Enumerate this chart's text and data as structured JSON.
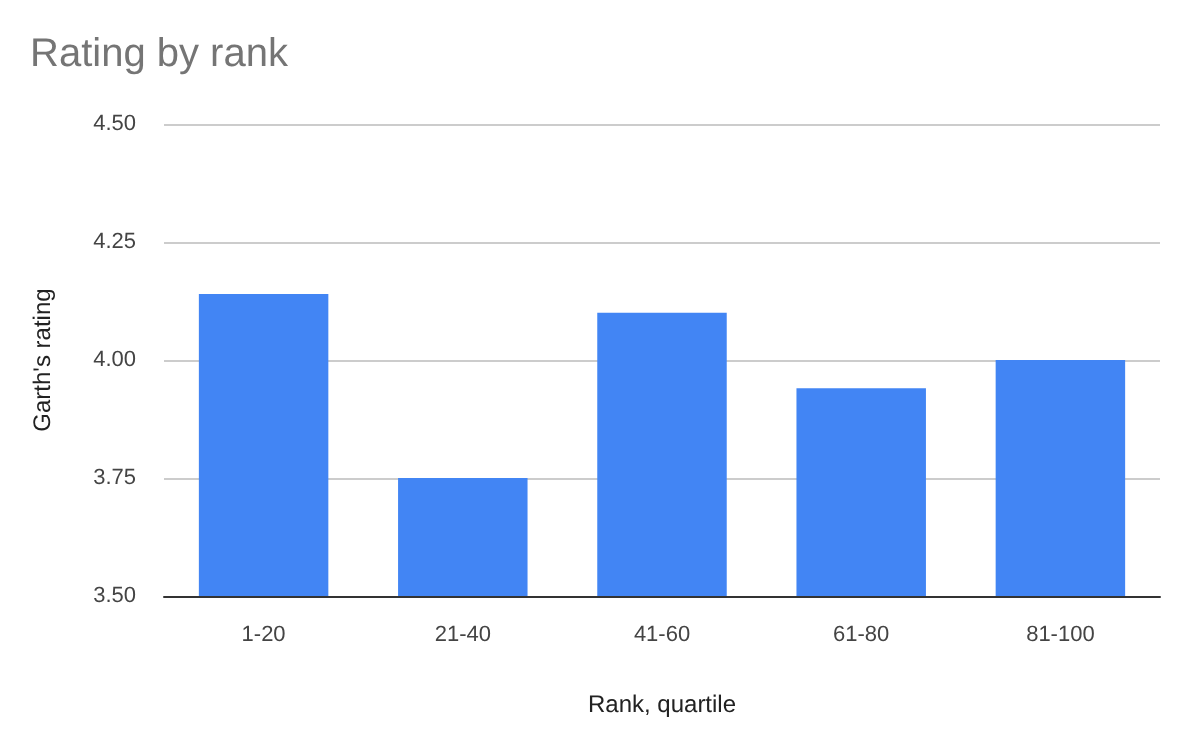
{
  "chart_data": {
    "type": "bar",
    "title": "Rating by rank",
    "xlabel": "Rank, quartile",
    "ylabel": "Garth's rating",
    "categories": [
      "1-20",
      "21-40",
      "41-60",
      "61-80",
      "81-100"
    ],
    "values": [
      4.14,
      3.75,
      4.1,
      3.94,
      4.0
    ],
    "color": "#4285f4",
    "ylim": [
      3.5,
      4.5
    ],
    "yticks": [
      {
        "value": 3.5,
        "label": "3.50"
      },
      {
        "value": 3.75,
        "label": "3.75"
      },
      {
        "value": 4,
        "label": "4.00"
      },
      {
        "value": 4.25,
        "label": "4.25"
      },
      {
        "value": 4.5,
        "label": "4.50"
      }
    ],
    "grid": true
  }
}
